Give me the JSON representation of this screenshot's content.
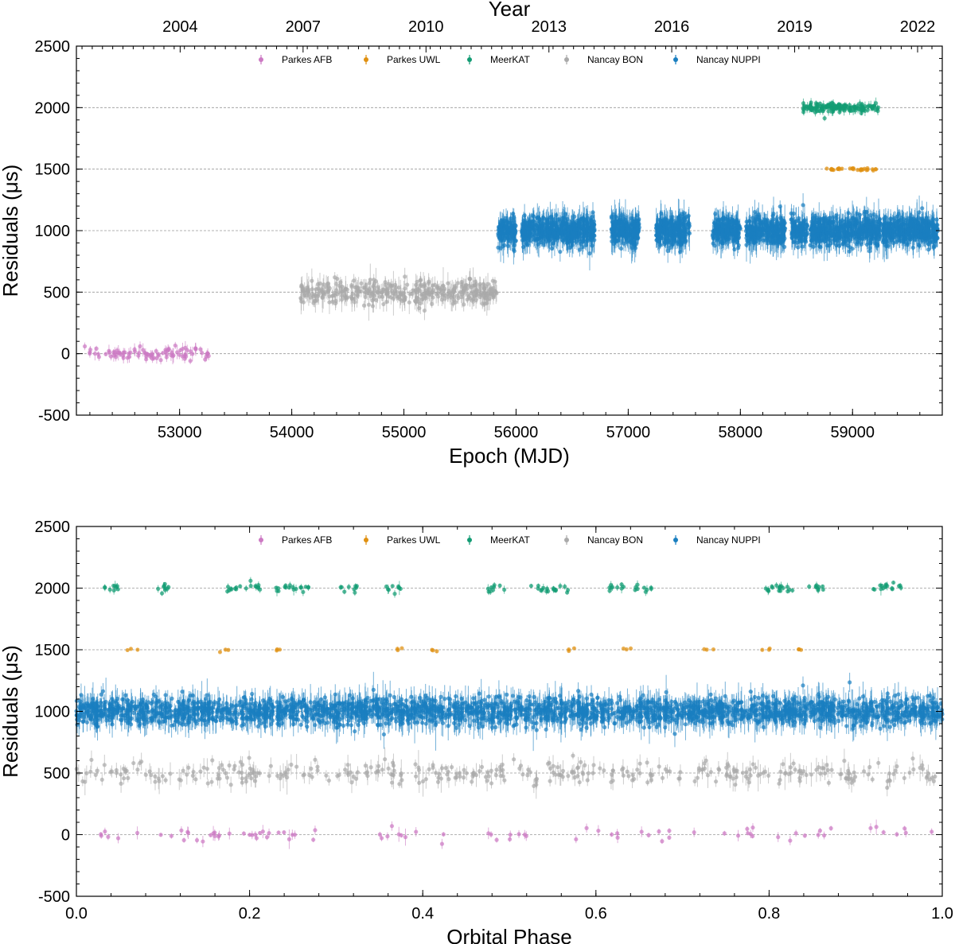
{
  "colors": {
    "Parkes AFB": "#cc79c3",
    "Parkes UWL": "#e09010",
    "MeerKAT": "#139c74",
    "Nancay BON": "#aaaaaa",
    "Nancay NUPPI": "#1a7fc0"
  },
  "chart_data": [
    {
      "type": "scatter",
      "title": "",
      "xlabel": "Epoch (MJD)",
      "ylabel": "Residuals (μs)",
      "top_axis_label": "Year",
      "xlim": [
        52080,
        59800
      ],
      "ylim": [
        -500,
        2500
      ],
      "x_ticks": [
        "53000",
        "54000",
        "55000",
        "56000",
        "57000",
        "58000",
        "59000"
      ],
      "x_tick_values": [
        53000,
        54000,
        55000,
        56000,
        57000,
        58000,
        59000
      ],
      "top_ticks": [
        "2004",
        "2007",
        "2010",
        "2013",
        "2016",
        "2019",
        "2022"
      ],
      "top_tick_values": [
        53005,
        54101,
        55197,
        56293,
        57388,
        58484,
        59580
      ],
      "y_ticks": [
        "-500",
        "0",
        "500",
        "1000",
        "1500",
        "2000",
        "2500"
      ],
      "grid": "horizontal dashed at y ticks",
      "legend_position": "top",
      "series": [
        {
          "name": "Parkes AFB",
          "offset": 0,
          "x_range": [
            52150,
            53270
          ],
          "scatter": 28,
          "points_approx": 90
        },
        {
          "name": "Nancay BON",
          "offset": 500,
          "x_range": [
            54080,
            55830
          ],
          "scatter": 45,
          "points_approx": 380
        },
        {
          "name": "Nancay NUPPI",
          "offset": 1000,
          "x_range": [
            55840,
            59760
          ],
          "scatter": 55,
          "points_approx": 2600,
          "segments": [
            [
              55840,
              56000
            ],
            [
              56050,
              56700
            ],
            [
              56850,
              57100
            ],
            [
              57250,
              57550
            ],
            [
              57750,
              58000
            ],
            [
              58050,
              58400
            ],
            [
              58450,
              58600
            ],
            [
              58620,
              59250
            ],
            [
              59270,
              59760
            ]
          ]
        },
        {
          "name": "Parkes UWL",
          "offset": 1500,
          "x_range": [
            58750,
            59240
          ],
          "scatter": 6,
          "points_approx": 30
        },
        {
          "name": "MeerKAT",
          "offset": 2000,
          "x_range": [
            58550,
            59230
          ],
          "scatter": 18,
          "points_approx": 160
        }
      ]
    },
    {
      "type": "scatter",
      "title": "",
      "xlabel": "Orbital Phase",
      "ylabel": "Residuals (μs)",
      "xlim": [
        0.0,
        1.0
      ],
      "ylim": [
        -500,
        2500
      ],
      "x_ticks": [
        "0.0",
        "0.2",
        "0.4",
        "0.6",
        "0.8",
        "1.0"
      ],
      "x_tick_values": [
        0.0,
        0.2,
        0.4,
        0.6,
        0.8,
        1.0
      ],
      "y_ticks": [
        "-500",
        "0",
        "500",
        "1000",
        "1500",
        "2000",
        "2500"
      ],
      "grid": "horizontal dashed at y ticks",
      "legend_position": "top",
      "series": [
        {
          "name": "Parkes AFB",
          "offset": 0,
          "x_range": [
            0.0,
            1.0
          ],
          "scatter": 25,
          "points_approx": 90
        },
        {
          "name": "Nancay BON",
          "offset": 500,
          "x_range": [
            0.0,
            1.0
          ],
          "scatter": 45,
          "points_approx": 380
        },
        {
          "name": "Nancay NUPPI",
          "offset": 1000,
          "x_range": [
            0.0,
            1.0
          ],
          "scatter": 55,
          "points_approx": 2600
        },
        {
          "name": "Parkes UWL",
          "offset": 1500,
          "x_range": [
            0.05,
            0.84
          ],
          "scatter": 6,
          "points_approx": 30
        },
        {
          "name": "MeerKAT",
          "offset": 2000,
          "x_range": [
            0.03,
            0.95
          ],
          "scatter": 18,
          "points_approx": 160
        }
      ]
    }
  ],
  "legend": [
    "Parkes AFB",
    "Parkes UWL",
    "MeerKAT",
    "Nancay BON",
    "Nancay NUPPI"
  ]
}
